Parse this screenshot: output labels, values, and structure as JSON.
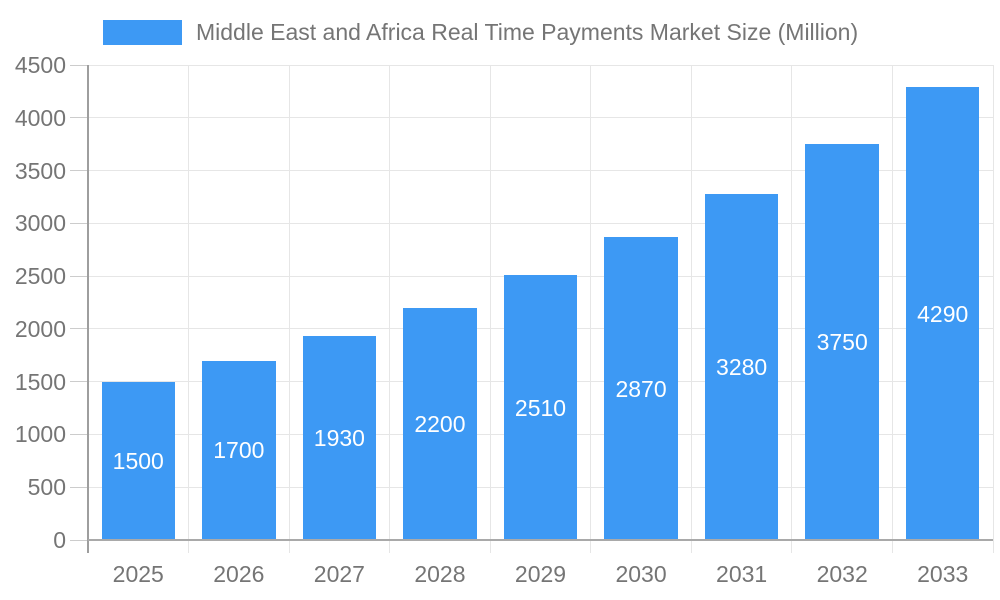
{
  "chart_data": {
    "type": "bar",
    "title": "Middle East and Africa Real Time Payments Market Size (Million)",
    "categories": [
      "2025",
      "2026",
      "2027",
      "2028",
      "2029",
      "2030",
      "2031",
      "2032",
      "2033"
    ],
    "values": [
      1500,
      1700,
      1930,
      2200,
      2510,
      2870,
      3280,
      3750,
      4290
    ],
    "xlabel": "",
    "ylabel": "",
    "ylim": [
      0,
      4500
    ],
    "ytick_step": 500,
    "grid": true,
    "legend_position": "top",
    "bar_value_labels_visible": true
  },
  "colors": {
    "bar": "#3d99f4",
    "bar_label_text": "#ffffff",
    "grid_line": "#e6e6e6",
    "tick_line": "#cccccc",
    "y_axis_line": "#9e9e9e",
    "baseline": "#a9a9a9",
    "axis_text": "#757575",
    "background": "#ffffff"
  }
}
